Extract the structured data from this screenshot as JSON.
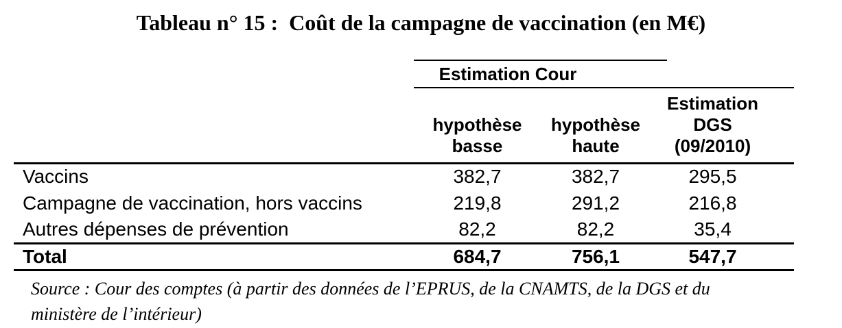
{
  "page": {
    "background_color": "#ffffff",
    "text_color": "#000000"
  },
  "title": "Tableau n° 15 :  Coût de la campagne de vaccination (en M€)",
  "table": {
    "group_header": "Estimation Cour",
    "columns": [
      "hypothèse\nbasse",
      "hypothèse\nhaute",
      "Estimation\nDGS\n(09/2010)"
    ],
    "rows": [
      {
        "label": "Vaccins",
        "values": [
          "382,7",
          "382,7",
          "295,5"
        ]
      },
      {
        "label": "Campagne de vaccination, hors vaccins",
        "values": [
          "219,8",
          "291,2",
          "216,8"
        ]
      },
      {
        "label": "Autres dépenses de prévention",
        "values": [
          "82,2",
          "82,2",
          "35,4"
        ]
      }
    ],
    "total": {
      "label": "Total",
      "values": [
        "684,7",
        "756,1",
        "547,7"
      ]
    }
  },
  "source": {
    "lines": [
      "Source : Cour des comptes (à partir des données de l’EPRUS, de la CNAMTS, de la DGS et du",
      "ministère de l’intérieur)"
    ]
  }
}
